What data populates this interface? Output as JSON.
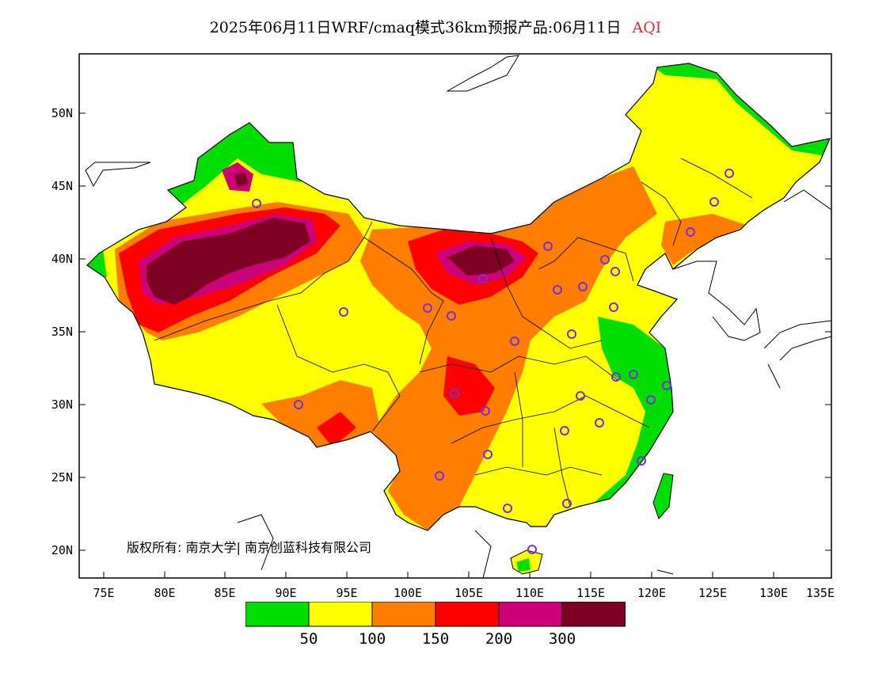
{
  "header": {
    "title": "2025年06月11日WRF/cmaq模式36km预报产品:06月11日",
    "variable": "AQI",
    "variable_color": "#e0283c"
  },
  "map": {
    "lat_labels": [
      "50N",
      "45N",
      "40N",
      "35N",
      "30N",
      "25N",
      "20N"
    ],
    "lon_labels": [
      "75E",
      "80E",
      "85E",
      "90E",
      "95E",
      "100E",
      "105E",
      "110E",
      "115E",
      "120E",
      "125E",
      "130E",
      "135E"
    ],
    "extent": {
      "lon": [
        73,
        135
      ],
      "lat": [
        18,
        54
      ]
    },
    "copyright": "版权所有: 南京大学| 南京创蓝科技有限公司",
    "station_marker_color": "#7a2fd6",
    "land_outside_china": "#ffffff",
    "coastline_color": "#000000"
  },
  "legend": {
    "colors": [
      "#00dd00",
      "#ffff00",
      "#ff7e00",
      "#ff0000",
      "#cc0077",
      "#7e0023"
    ],
    "thresholds": [
      "50",
      "100",
      "150",
      "200",
      "300"
    ]
  }
}
